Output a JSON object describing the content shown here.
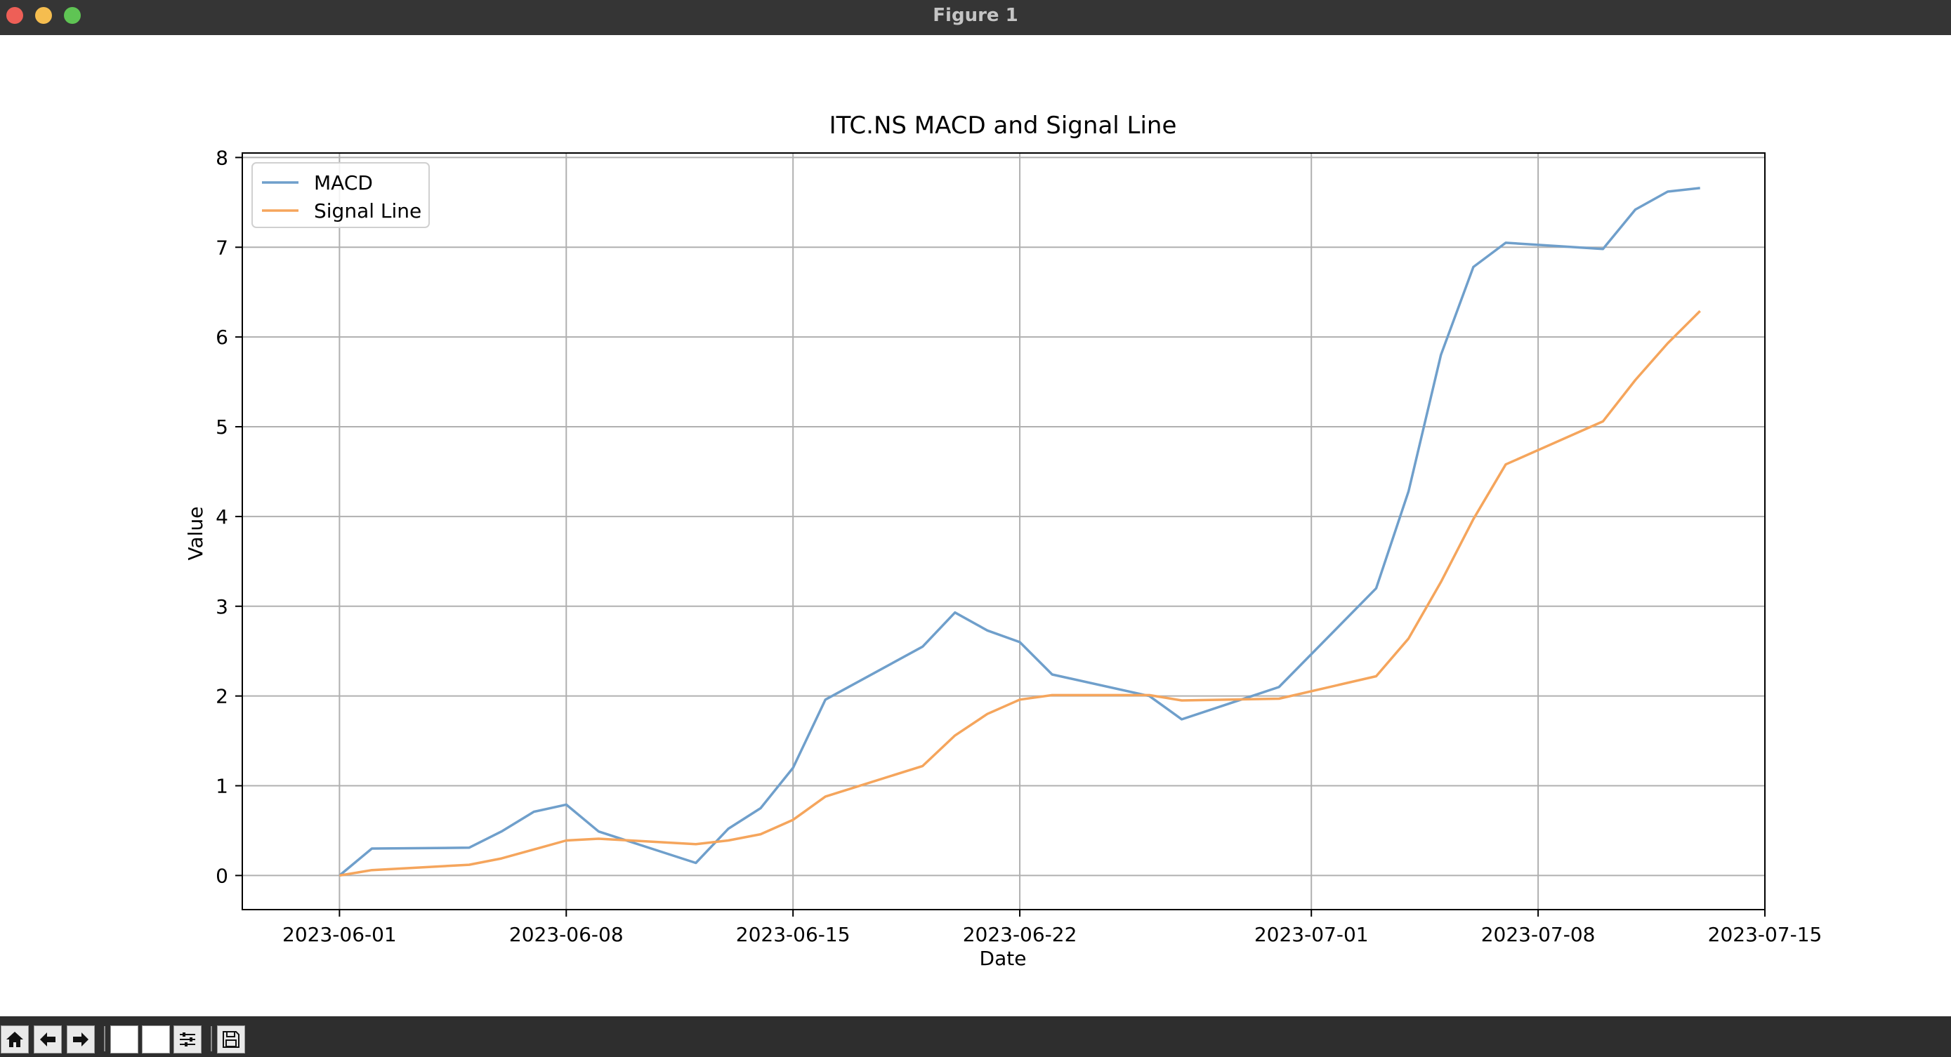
{
  "window": {
    "title": "Figure 1"
  },
  "toolbar": {
    "buttons": [
      {
        "icon": "home-icon"
      },
      {
        "icon": "back-arrow-icon"
      },
      {
        "icon": "forward-arrow-icon"
      },
      {
        "icon": "pan-icon"
      },
      {
        "icon": "zoom-icon"
      },
      {
        "icon": "configure-subplots-icon"
      },
      {
        "icon": "save-icon"
      }
    ]
  },
  "colors": {
    "macd": "#6f9fcb",
    "signal": "#f5a55c",
    "grid": "#b0b0b0"
  },
  "chart_data": {
    "type": "line",
    "title": "ITC.NS MACD and Signal Line",
    "xlabel": "Date",
    "ylabel": "Value",
    "xlim": [
      "2023-05-29",
      "2023-07-15"
    ],
    "ylim": [
      -0.38,
      8.05
    ],
    "xticks": [
      "2023-06-01",
      "2023-06-08",
      "2023-06-15",
      "2023-06-22",
      "2023-07-01",
      "2023-07-08",
      "2023-07-15"
    ],
    "yticks": [
      0,
      1,
      2,
      3,
      4,
      5,
      6,
      7,
      8
    ],
    "grid": true,
    "legend": "top-left",
    "x": [
      "2023-06-01",
      "2023-06-02",
      "2023-06-05",
      "2023-06-06",
      "2023-06-07",
      "2023-06-08",
      "2023-06-09",
      "2023-06-12",
      "2023-06-13",
      "2023-06-14",
      "2023-06-15",
      "2023-06-16",
      "2023-06-19",
      "2023-06-20",
      "2023-06-21",
      "2023-06-22",
      "2023-06-23",
      "2023-06-26",
      "2023-06-27",
      "2023-06-30",
      "2023-07-03",
      "2023-07-04",
      "2023-07-05",
      "2023-07-06",
      "2023-07-07",
      "2023-07-10",
      "2023-07-11",
      "2023-07-12",
      "2023-07-13"
    ],
    "series": [
      {
        "name": "MACD",
        "color": "#6f9fcb",
        "values": [
          0.0,
          0.3,
          0.31,
          0.49,
          0.71,
          0.79,
          0.49,
          0.14,
          0.52,
          0.75,
          1.2,
          1.96,
          2.55,
          2.93,
          2.73,
          2.6,
          2.24,
          2.0,
          1.74,
          2.1,
          3.2,
          4.28,
          5.8,
          6.78,
          7.05,
          6.98,
          7.42,
          7.62,
          7.66
        ]
      },
      {
        "name": "Signal Line",
        "color": "#f5a55c",
        "values": [
          0.0,
          0.06,
          0.12,
          0.19,
          0.29,
          0.39,
          0.41,
          0.35,
          0.39,
          0.46,
          0.62,
          0.88,
          1.22,
          1.56,
          1.8,
          1.96,
          2.01,
          2.01,
          1.95,
          1.97,
          2.22,
          2.64,
          3.27,
          3.97,
          4.58,
          5.06,
          5.52,
          5.93,
          6.29
        ]
      }
    ]
  }
}
